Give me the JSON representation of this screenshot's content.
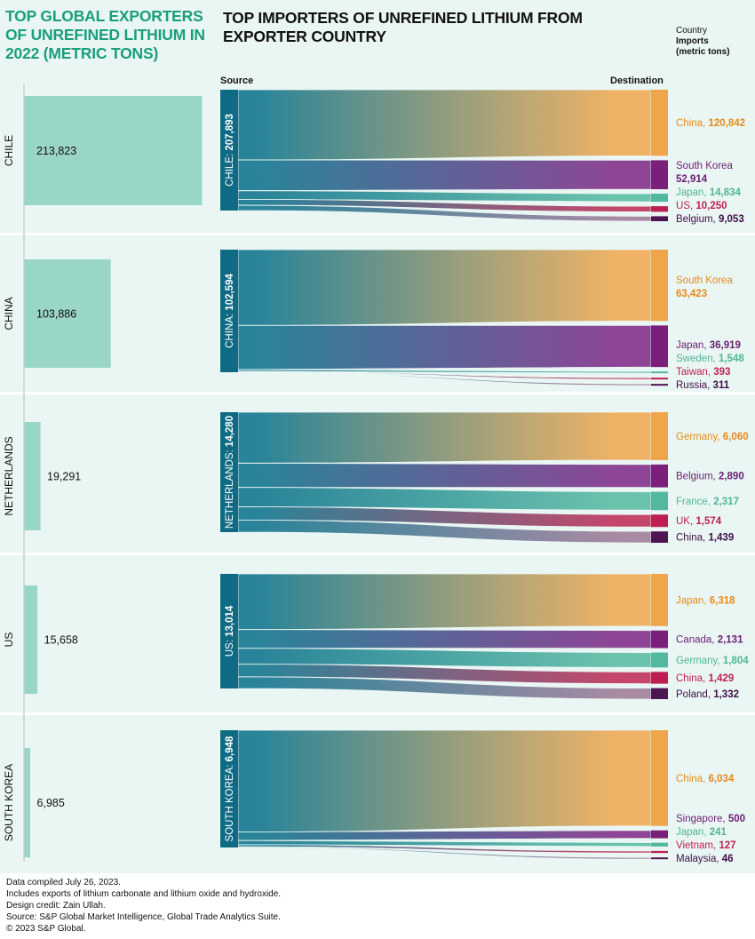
{
  "titles": {
    "left": "TOP GLOBAL EXPORTERS OF UNREFINED LITHIUM IN 2022 (METRIC TONS)",
    "right": "TOP IMPORTERS OF UNREFINED LITHIUM FROM EXPORTER COUNTRY"
  },
  "legend": {
    "country_label": "Country",
    "imports_label": "Imports",
    "unit_label": "(metric tons)"
  },
  "columns": {
    "source": "Source",
    "destination": "Destination"
  },
  "colors": {
    "background": "#eaf6f3",
    "export_bar": "#9ad6c6",
    "source_node": "#0f6b84",
    "flow_start": "#2a8499",
    "rank_colors": [
      "#efa54a",
      "#7a1f7a",
      "#52b89f",
      "#bd1f52",
      "#4f1552"
    ],
    "flow_end": [
      "#f0b366",
      "#8e4595",
      "#6cc3ad",
      "#c5466b",
      "#a88aa3"
    ],
    "label_colors": [
      "#e8891a",
      "#6a1f72",
      "#4fb595",
      "#bd1f52",
      "#3d0f45"
    ],
    "title_green": "#1a9e7e"
  },
  "chart_data": [
    {
      "type": "bar",
      "title": "TOP GLOBAL EXPORTERS OF UNREFINED LITHIUM IN 2022 (METRIC TONS)",
      "orientation": "horizontal",
      "categories": [
        "CHILE",
        "CHINA",
        "NETHERLANDS",
        "US",
        "SOUTH KOREA"
      ],
      "values": [
        213823,
        103886,
        19291,
        15658,
        6985
      ],
      "value_labels": [
        "213,823",
        "103,886",
        "19,291",
        "15,658",
        "6,985"
      ],
      "xlim": [
        0,
        213823
      ],
      "grid": false
    },
    {
      "type": "sankey",
      "title": "TOP IMPORTERS OF UNREFINED LITHIUM FROM EXPORTER COUNTRY",
      "sources": [
        {
          "name": "CHILE",
          "total": 207893,
          "label": "CHILE: ",
          "total_label": "207,893",
          "destinations": [
            {
              "name": "China",
              "value": 120842,
              "value_label": "120,842",
              "wrap": false
            },
            {
              "name": "South Korea",
              "value": 52914,
              "value_label": "52,914",
              "wrap": true
            },
            {
              "name": "Japan",
              "value": 14834,
              "value_label": "14,834",
              "wrap": false
            },
            {
              "name": "US",
              "value": 10250,
              "value_label": "10,250",
              "wrap": false
            },
            {
              "name": "Belgium",
              "value": 9053,
              "value_label": "9,053",
              "wrap": false
            }
          ]
        },
        {
          "name": "CHINA",
          "total": 102594,
          "label": "CHINA: ",
          "total_label": "102,594",
          "destinations": [
            {
              "name": "South Korea",
              "value": 63423,
              "value_label": "63,423",
              "wrap": true
            },
            {
              "name": "Japan",
              "value": 36919,
              "value_label": "36,919",
              "wrap": false
            },
            {
              "name": "Sweden",
              "value": 1548,
              "value_label": "1,548",
              "wrap": false
            },
            {
              "name": "Taiwan",
              "value": 393,
              "value_label": "393",
              "wrap": false
            },
            {
              "name": "Russia",
              "value": 311,
              "value_label": "311",
              "wrap": false
            }
          ]
        },
        {
          "name": "NETHERLANDS",
          "total": 14280,
          "label": "NETHERLANDS: ",
          "total_label": "14,280",
          "destinations": [
            {
              "name": "Germany",
              "value": 6060,
              "value_label": "6,060",
              "wrap": false
            },
            {
              "name": "Belgium",
              "value": 2890,
              "value_label": "2,890",
              "wrap": false
            },
            {
              "name": "France",
              "value": 2317,
              "value_label": "2,317",
              "wrap": false
            },
            {
              "name": "UK",
              "value": 1574,
              "value_label": "1,574",
              "wrap": false
            },
            {
              "name": "China",
              "value": 1439,
              "value_label": "1,439",
              "wrap": false
            }
          ]
        },
        {
          "name": "US",
          "total": 13014,
          "label": "US: ",
          "total_label": "13,014",
          "destinations": [
            {
              "name": "Japan",
              "value": 6318,
              "value_label": "6,318",
              "wrap": false
            },
            {
              "name": "Canada",
              "value": 2131,
              "value_label": "2,131",
              "wrap": false
            },
            {
              "name": "Germany",
              "value": 1804,
              "value_label": "1,804",
              "wrap": false
            },
            {
              "name": "China",
              "value": 1429,
              "value_label": "1,429",
              "wrap": false
            },
            {
              "name": "Poland",
              "value": 1332,
              "value_label": "1,332",
              "wrap": false
            }
          ]
        },
        {
          "name": "SOUTH KOREA",
          "total": 6948,
          "label": "SOUTH KOREA: ",
          "total_label": "6,948",
          "destinations": [
            {
              "name": "China",
              "value": 6034,
              "value_label": "6,034",
              "wrap": false
            },
            {
              "name": "Singapore",
              "value": 500,
              "value_label": "500",
              "wrap": false
            },
            {
              "name": "Japan",
              "value": 241,
              "value_label": "241",
              "wrap": false
            },
            {
              "name": "Vietnam",
              "value": 127,
              "value_label": "127",
              "wrap": false
            },
            {
              "name": "Malaysia",
              "value": 46,
              "value_label": "46",
              "wrap": false
            }
          ]
        }
      ]
    }
  ],
  "footer": [
    "Data compiled July 26, 2023.",
    "Includes exports of lithium carbonate and lithium oxide and hydroxide.",
    "Design credit: Zain Ullah.",
    "Source: S&P Global Market Intelligence, Global Trade Analytics Suite.",
    "© 2023 S&P Global."
  ]
}
